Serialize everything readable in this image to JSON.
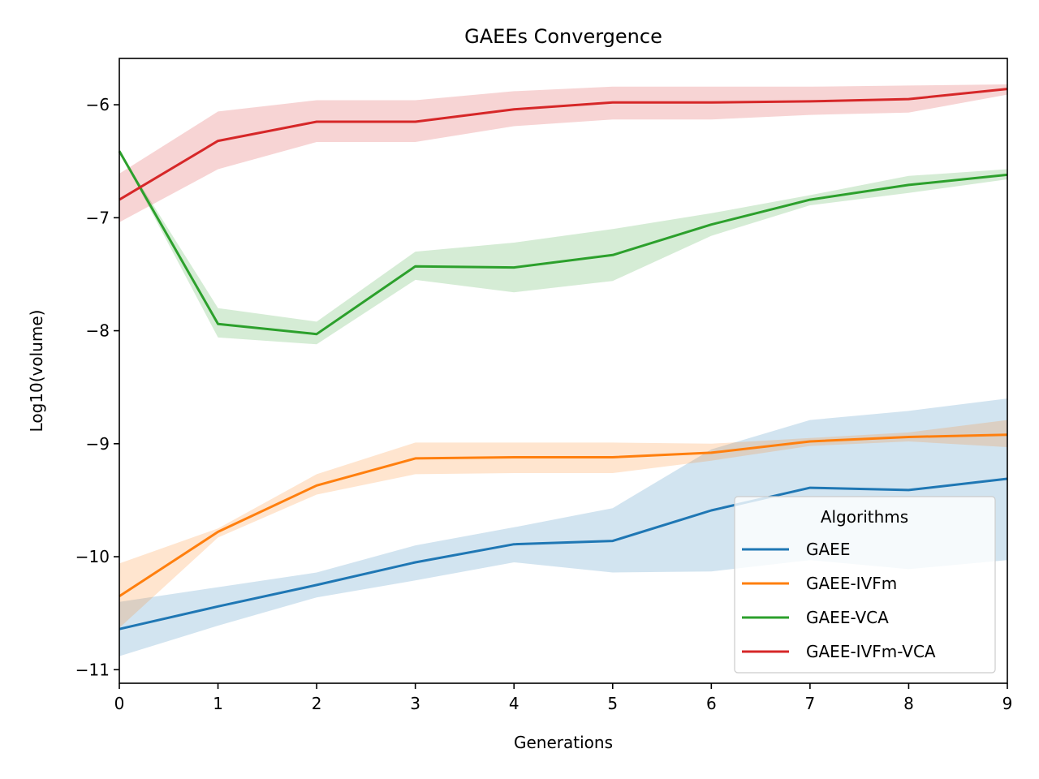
{
  "chart_data": {
    "type": "line",
    "title": "GAEEs Convergence",
    "xlabel": "Generations",
    "ylabel": "Log10(volume)",
    "xlim": [
      0,
      9
    ],
    "ylim": [
      -11.12,
      -5.59
    ],
    "x": [
      0,
      1,
      2,
      3,
      4,
      5,
      6,
      7,
      8,
      9
    ],
    "xticks": [
      0,
      1,
      2,
      3,
      4,
      5,
      6,
      7,
      8,
      9
    ],
    "xtick_labels": [
      "0",
      "1",
      "2",
      "3",
      "4",
      "5",
      "6",
      "7",
      "8",
      "9"
    ],
    "yticks": [
      -11,
      -10,
      -9,
      -8,
      -7,
      -6
    ],
    "ytick_labels": [
      "−11",
      "−10",
      "−9",
      "−8",
      "−7",
      "−6"
    ],
    "legend": {
      "title": "Algorithms",
      "position": "lower-right"
    },
    "series": [
      {
        "name": "GAEE",
        "color": "#1f77b4",
        "values": [
          -10.64,
          -10.44,
          -10.25,
          -10.05,
          -9.89,
          -9.86,
          -9.59,
          -9.39,
          -9.41,
          -9.31
        ],
        "lower": [
          -10.88,
          -10.61,
          -10.36,
          -10.21,
          -10.05,
          -10.14,
          -10.13,
          -10.03,
          -10.11,
          -10.03
        ],
        "upper": [
          -10.4,
          -10.27,
          -10.14,
          -9.9,
          -9.74,
          -9.57,
          -9.05,
          -8.79,
          -8.71,
          -8.6
        ]
      },
      {
        "name": "GAEE-IVFm",
        "color": "#ff7f0e",
        "values": [
          -10.35,
          -9.78,
          -9.37,
          -9.13,
          -9.12,
          -9.12,
          -9.08,
          -8.98,
          -8.94,
          -8.92
        ],
        "lower": [
          -10.63,
          -9.83,
          -9.45,
          -9.27,
          -9.26,
          -9.26,
          -9.15,
          -9.02,
          -8.98,
          -9.03
        ],
        "upper": [
          -10.06,
          -9.75,
          -9.27,
          -8.99,
          -8.99,
          -8.99,
          -9.0,
          -8.95,
          -8.9,
          -8.79
        ]
      },
      {
        "name": "GAEE-VCA",
        "color": "#2ca02c",
        "values": [
          -6.41,
          -7.94,
          -8.03,
          -7.43,
          -7.44,
          -7.33,
          -7.06,
          -6.84,
          -6.71,
          -6.62
        ],
        "lower": [
          -6.41,
          -8.06,
          -8.12,
          -7.55,
          -7.66,
          -7.56,
          -7.16,
          -6.89,
          -6.78,
          -6.66
        ],
        "upper": [
          -6.41,
          -7.8,
          -7.92,
          -7.3,
          -7.22,
          -7.1,
          -6.96,
          -6.8,
          -6.63,
          -6.57
        ]
      },
      {
        "name": "GAEE-IVFm-VCA",
        "color": "#d62728",
        "values": [
          -6.84,
          -6.32,
          -6.15,
          -6.15,
          -6.04,
          -5.98,
          -5.98,
          -5.97,
          -5.95,
          -5.86
        ],
        "lower": [
          -7.04,
          -6.57,
          -6.33,
          -6.33,
          -6.19,
          -6.13,
          -6.13,
          -6.09,
          -6.07,
          -5.91
        ],
        "upper": [
          -6.61,
          -6.06,
          -5.96,
          -5.96,
          -5.88,
          -5.84,
          -5.84,
          -5.84,
          -5.83,
          -5.82
        ]
      }
    ]
  }
}
